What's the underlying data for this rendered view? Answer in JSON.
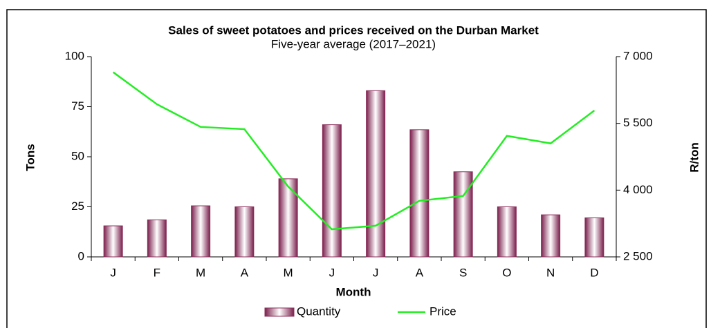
{
  "chart_data": {
    "type": "bar_line",
    "title": "Sales of sweet potatoes and prices received on the Durban Market",
    "subtitle": "Five-year average (2017–2021)",
    "x_label": "Month",
    "y_label": "Tons",
    "y2_label": "R/ton",
    "categories": [
      "J",
      "F",
      "M",
      "A",
      "M",
      "J",
      "J",
      "A",
      "S",
      "O",
      "N",
      "D"
    ],
    "series": [
      {
        "name": "Quantity",
        "type": "bar",
        "color": "#8b2d5a",
        "values": [
          15.5,
          18.5,
          25.5,
          25,
          39,
          66,
          83,
          63.5,
          42.5,
          25,
          21,
          19.5
        ]
      },
      {
        "name": "Price",
        "type": "line",
        "axis": "y2",
        "color": "#22ee22",
        "values": [
          6650,
          5930,
          5420,
          5370,
          4080,
          3120,
          3200,
          3760,
          3870,
          5220,
          5050,
          5790
        ]
      }
    ],
    "ylim": [
      0,
      100
    ],
    "yticks": [
      0,
      25,
      50,
      75,
      100
    ],
    "y2lim": [
      2500,
      7000
    ],
    "y2ticks": [
      {
        "value": 2500,
        "label": "2 500"
      },
      {
        "value": 4000,
        "label": "4 000"
      },
      {
        "value": 5500,
        "label": "5 500"
      },
      {
        "value": 7000,
        "label": "7 000"
      }
    ],
    "legend": "bottom"
  }
}
